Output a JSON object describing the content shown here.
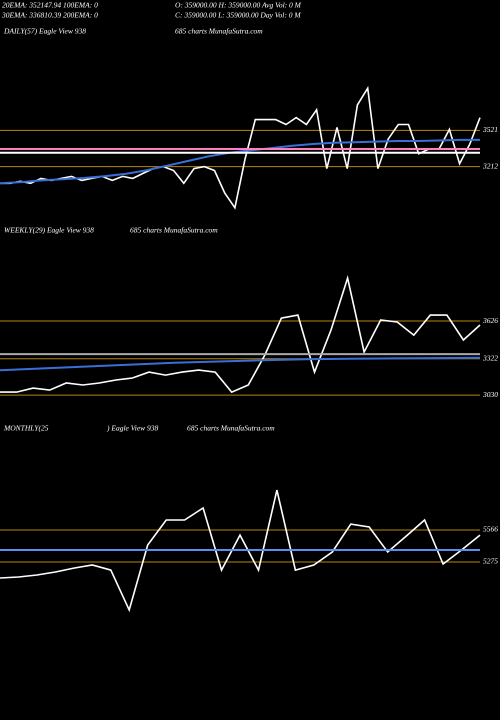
{
  "header": {
    "lines": [
      "20EMA: 352147.94 100EMA: 0",
      "30EMA: 336810.39 200EMA: 0",
      "O: 359000.00 H: 359000.00 Avg Vol: 0  M",
      "C: 359000.00 L: 359000.00 Day Vol: 0  M"
    ]
  },
  "chart_data": [
    {
      "type": "line",
      "title": "DAILY(57) Eagle  View  938",
      "subtitle": "685 charts MunafaSutra.com",
      "ylim": [
        2800,
        3950
      ],
      "yticks": [
        3521,
        3212
      ],
      "tick_color": "#b8860b",
      "series": [
        {
          "color": "#ffffff",
          "values": [
            3070,
            3070,
            3087,
            3070,
            3112,
            3095,
            3112,
            3129,
            3095,
            3112,
            3129,
            3095,
            3129,
            3112,
            3154,
            3195,
            3212,
            3179,
            3070,
            3195,
            3212,
            3179,
            2987,
            2861,
            3279,
            3613,
            3613,
            3613,
            3571,
            3630,
            3571,
            3696,
            3195,
            3546,
            3195,
            3738,
            3880,
            3195,
            3446,
            3571,
            3571,
            3321,
            3362,
            3362,
            3529,
            3237,
            3404,
            3630
          ]
        },
        {
          "color": "#3a6fd8",
          "values": [
            3070,
            3080,
            3095,
            3105,
            3115,
            3130,
            3150,
            3180,
            3220,
            3260,
            3300,
            3330,
            3350,
            3370,
            3390,
            3405,
            3415,
            3420,
            3425,
            3430,
            3430,
            3435,
            3440,
            3440
          ]
        },
        {
          "color": "#ff80c0",
          "values": [
            3362,
            3362
          ]
        },
        {
          "color": "#ffffff",
          "values": [
            3330,
            3330
          ]
        }
      ]
    },
    {
      "type": "line",
      "title": "WEEKLY(29) Eagle  View  938",
      "subtitle": "685 charts MunafaSutra.com",
      "ylim": [
        2950,
        4198
      ],
      "yticks": [
        3626,
        3322,
        3030
      ],
      "tick_color": "#b8860b",
      "series": [
        {
          "color": "#ffffff",
          "values": [
            3054,
            3054,
            3086,
            3070,
            3127,
            3111,
            3127,
            3151,
            3167,
            3215,
            3191,
            3215,
            3231,
            3215,
            3054,
            3111,
            3352,
            3650,
            3674,
            3215,
            3553,
            3972,
            3376,
            3634,
            3618,
            3513,
            3674,
            3674,
            3473,
            3594
          ]
        },
        {
          "color": "#3a6fd8",
          "values": [
            3230,
            3245,
            3260,
            3275,
            3290,
            3300,
            3310,
            3318,
            3322,
            3325,
            3328,
            3330
          ]
        },
        {
          "color": "#aaaaaa",
          "values": [
            3360,
            3360
          ]
        }
      ]
    },
    {
      "type": "line",
      "title": "MONTHLY(25",
      "title2": ") Eagle  View  938",
      "subtitle": "685 charts MunafaSutra.com",
      "ylim": [
        4839,
        6384
      ],
      "yticks": [
        5566,
        5275
      ],
      "tick_color": "#b8860b",
      "series": [
        {
          "color": "#ffffff",
          "values": [
            5130,
            5139,
            5157,
            5184,
            5220,
            5248,
            5202,
            4839,
            5430,
            5657,
            5657,
            5766,
            5202,
            5520,
            5202,
            5929,
            5202,
            5248,
            5366,
            5620,
            5593,
            5366,
            5511,
            5657,
            5257,
            5384,
            5520
          ]
        },
        {
          "color": "#5b8ff0",
          "values": [
            5384,
            5384
          ]
        }
      ]
    }
  ]
}
